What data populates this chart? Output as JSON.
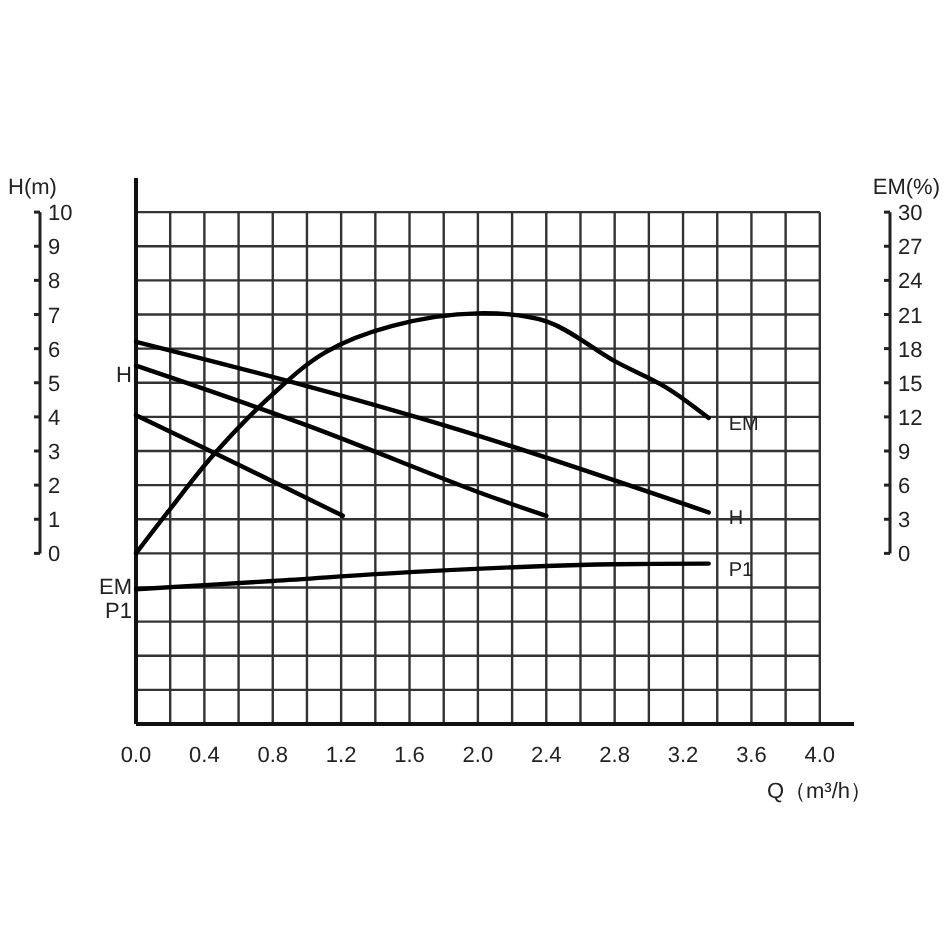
{
  "chart_data": {
    "type": "line",
    "xlabel": "Q（m³/h）",
    "ylabel": "H(m)",
    "y2label": "EM(%)",
    "xlim": [
      0,
      4.2
    ],
    "ylim": [
      -5,
      11
    ],
    "y2lim": [
      -15,
      33
    ],
    "xticks": [
      {
        "value": 0,
        "label": "0.0"
      },
      {
        "value": 0.2,
        "label": null
      },
      {
        "value": 0.4,
        "label": "0.4"
      },
      {
        "value": 0.6,
        "label": null
      },
      {
        "value": 0.8,
        "label": "0.8"
      },
      {
        "value": 1,
        "label": null
      },
      {
        "value": 1.2,
        "label": "1.2"
      },
      {
        "value": 1.4,
        "label": null
      },
      {
        "value": 1.6,
        "label": "1.6"
      },
      {
        "value": 1.8,
        "label": null
      },
      {
        "value": 2,
        "label": "2.0"
      },
      {
        "value": 2.2,
        "label": null
      },
      {
        "value": 2.4,
        "label": "2.4"
      },
      {
        "value": 2.6,
        "label": null
      },
      {
        "value": 2.8,
        "label": "2.8"
      },
      {
        "value": 3,
        "label": null
      },
      {
        "value": 3.2,
        "label": "3.2"
      },
      {
        "value": 3.4,
        "label": null
      },
      {
        "value": 3.6,
        "label": "3.6"
      },
      {
        "value": 3.8,
        "label": null
      },
      {
        "value": 4,
        "label": "4.0"
      }
    ],
    "yticks": [
      {
        "value": -5,
        "label": null
      },
      {
        "value": -4,
        "label": null
      },
      {
        "value": -3,
        "label": null
      },
      {
        "value": -2,
        "label": null
      },
      {
        "value": -1,
        "label": null
      },
      0,
      1,
      2,
      3,
      4,
      5,
      6,
      7,
      8,
      9,
      10
    ],
    "y2ticks": [
      0,
      3,
      6,
      9,
      12,
      15,
      18,
      21,
      24,
      27,
      30
    ],
    "grid": true,
    "line_style": "solid",
    "series": [
      {
        "name": "H",
        "color": "#000000",
        "x": [
          0,
          1,
          2,
          3.35
        ],
        "values": [
          6.2,
          4.9,
          3.45,
          1.2
        ]
      },
      {
        "color": "#000000",
        "x": [
          0,
          1,
          2,
          2.4
        ],
        "values": [
          5.5,
          3.75,
          1.8,
          1.1
        ]
      },
      {
        "color": "#000000",
        "x": [
          0,
          0.6,
          1.21
        ],
        "values": [
          4.05,
          2.6,
          1.1
        ]
      },
      {
        "name": "EM",
        "color": "#000000",
        "axis": "y2",
        "x": [
          0,
          0.2,
          0.45,
          0.8,
          1.11,
          1.5,
          2,
          2.4,
          2.8,
          3.1,
          3.35
        ],
        "values": [
          0,
          3.9,
          8.6,
          14,
          17.7,
          20,
          21.1,
          20.4,
          16.9,
          14.6,
          11.9
        ]
      },
      {
        "name": "P1",
        "color": "#000000",
        "x": [
          0,
          0.8,
          1.6,
          2.4,
          2.8,
          3.35
        ],
        "values": [
          -1.05,
          -0.81,
          -0.55,
          -0.37,
          -0.32,
          -0.3
        ]
      }
    ],
    "annotations": [
      "H",
      "EM",
      "P1"
    ]
  }
}
